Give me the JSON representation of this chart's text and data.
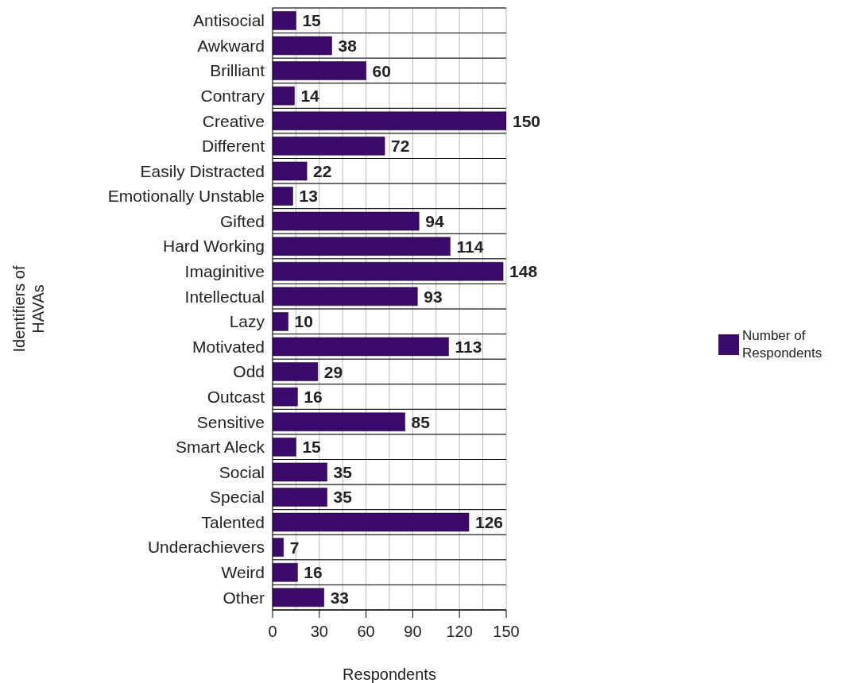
{
  "chart_data": {
    "type": "bar",
    "orientation": "horizontal",
    "xlabel": "Respondents",
    "ylabel": "Identifiers of HAVAs",
    "categories": [
      "Antisocial",
      "Awkward",
      "Brilliant",
      "Contrary",
      "Creative",
      "Different",
      "Easily Distracted",
      "Emotionally Unstable",
      "Gifted",
      "Hard Working",
      "Imaginitive",
      "Intellectual",
      "Lazy",
      "Motivated",
      "Odd",
      "Outcast",
      "Sensitive",
      "Smart Aleck",
      "Social",
      "Special",
      "Talented",
      "Underachievers",
      "Weird",
      "Other"
    ],
    "series": [
      {
        "name": "Number of Respondents",
        "color": "#3c0a6c",
        "values": [
          15,
          38,
          60,
          14,
          150,
          72,
          22,
          13,
          94,
          114,
          148,
          93,
          10,
          113,
          29,
          16,
          85,
          15,
          35,
          35,
          126,
          7,
          16,
          33
        ]
      }
    ],
    "xlim": [
      0,
      150
    ],
    "xticks": [
      0,
      {
        "value": 15,
        "label": null
      },
      30,
      {
        "value": 45,
        "label": null
      },
      60,
      {
        "value": 75,
        "label": null
      },
      90,
      {
        "value": 105,
        "label": null
      },
      120,
      {
        "value": 135,
        "label": null
      },
      150
    ],
    "grid": true,
    "legend": "right",
    "data_labels": true
  }
}
